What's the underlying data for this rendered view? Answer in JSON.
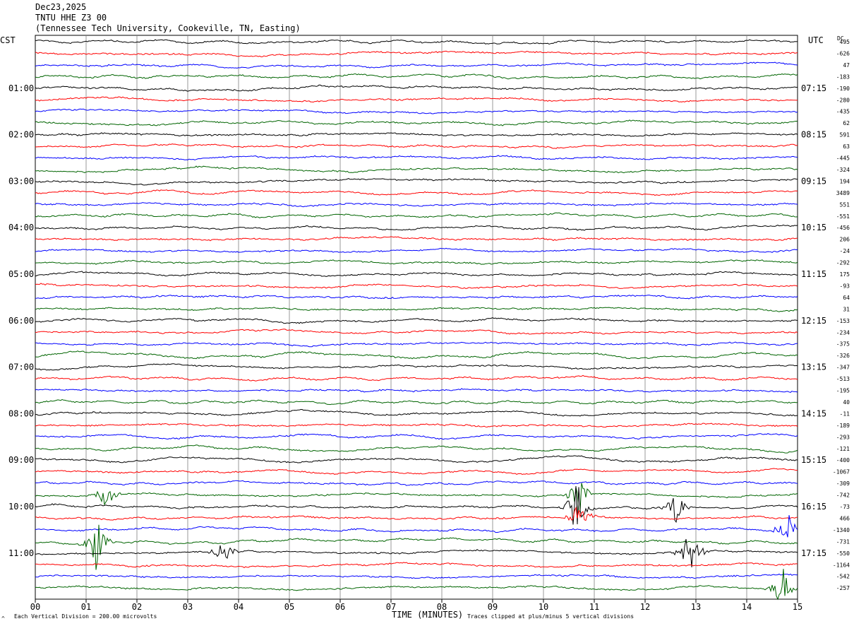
{
  "header": {
    "date": "Dec23,2025",
    "station": "TNTU HHE Z3 00",
    "location": "(Tennessee Tech University, Cookeville, TN, Easting)"
  },
  "left_tz": "CST",
  "right_tz": "UTC",
  "dc_label": "DC",
  "footer": {
    "scale_note": "Each Vertical Division =  200.00 microvolts",
    "clip_note": "Traces clipped at plus/minus 5 vertical divisions",
    "mark": "^"
  },
  "colors": {
    "cycle": [
      "#000000",
      "#ff0000",
      "#0000ff",
      "#006400"
    ],
    "grid": "#808080"
  },
  "chart_data": {
    "type": "line",
    "title": "",
    "xlabel": "TIME (MINUTES)",
    "ylabel": "",
    "xlim": [
      0,
      15
    ],
    "x_ticks": [
      "00",
      "01",
      "02",
      "03",
      "04",
      "05",
      "06",
      "07",
      "08",
      "09",
      "10",
      "11",
      "12",
      "13",
      "14",
      "15"
    ],
    "trace_count": 48,
    "minutes_per_trace": 15,
    "left_time_labels": [
      "01:00",
      "02:00",
      "03:00",
      "04:00",
      "05:00",
      "06:00",
      "07:00",
      "08:00",
      "09:00",
      "10:00",
      "11:00"
    ],
    "right_time_labels": [
      "07:15",
      "08:15",
      "09:15",
      "10:15",
      "11:15",
      "12:15",
      "13:15",
      "14:15",
      "15:15",
      "16:15",
      "17:15"
    ],
    "dc_offsets": [
      "495",
      "-626",
      "47",
      "-183",
      "-190",
      "-280",
      "-435",
      "62",
      "591",
      "63",
      "-445",
      "-324",
      "194",
      "3489",
      "551",
      "-551",
      "-456",
      "206",
      "-24",
      "-292",
      "175",
      "-93",
      "64",
      "31",
      "-153",
      "-234",
      "-375",
      "-326",
      "-347",
      "-513",
      "-195",
      "40",
      "-11",
      "-189",
      "-293",
      "-121",
      "-400",
      "-1067",
      "-309",
      "-742",
      "-73",
      "466",
      "-1340",
      "-731",
      "-550",
      "-1164",
      "-542",
      "-257"
    ],
    "events": [
      {
        "trace": 40,
        "minute": 10.65,
        "amplitude": 5
      },
      {
        "trace": 39,
        "minute": 10.7,
        "amplitude": 4
      },
      {
        "trace": 41,
        "minute": 10.7,
        "amplitude": 3
      },
      {
        "trace": 40,
        "minute": 12.6,
        "amplitude": 3
      },
      {
        "trace": 43,
        "minute": 1.2,
        "amplitude": 5
      },
      {
        "trace": 39,
        "minute": 1.4,
        "amplitude": 3
      },
      {
        "trace": 44,
        "minute": 3.7,
        "amplitude": 3
      },
      {
        "trace": 44,
        "minute": 12.9,
        "amplitude": 5
      },
      {
        "trace": 47,
        "minute": 14.7,
        "amplitude": 4
      },
      {
        "trace": 42,
        "minute": 14.8,
        "amplitude": 3
      }
    ]
  }
}
